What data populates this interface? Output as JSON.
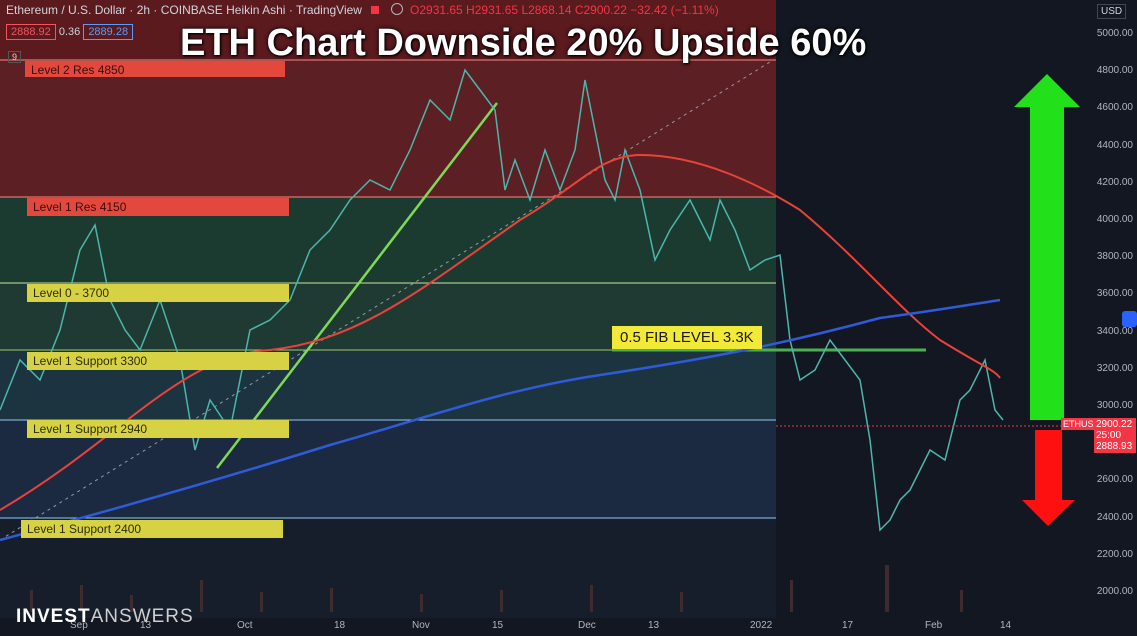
{
  "header": {
    "symbol": "Ethereum / U.S. Dollar",
    "interval": "2h",
    "exchange": "COINBASE",
    "chart_style": "Heikin Ashi",
    "platform": "TradingView",
    "ohlc": "O2931.65  H2931.65  L2868.14  C2900.22  −32.42 (−1.11%)",
    "sell_price": "2888.92",
    "spread": "0.36",
    "buy_price": "2889.28",
    "indicator_count": "9"
  },
  "overlay_title": "ETH Chart Downside 20% Upside 60%",
  "levels": [
    {
      "label": "Level 2 Res 4850",
      "kind": "res"
    },
    {
      "label": "Level 1 Res 4150",
      "kind": "res"
    },
    {
      "label": "Level 0 - 3700",
      "kind": "sup"
    },
    {
      "label": "Level 1 Support 3300",
      "kind": "sup"
    },
    {
      "label": "Level 1 Support 2940",
      "kind": "sup"
    },
    {
      "label": "Level 1 Support 2400",
      "kind": "sup"
    }
  ],
  "fib_label": "0.5 FIB LEVEL 3.3K",
  "currency": "USD",
  "y_axis_labels": [
    "5000.00",
    "4800.00",
    "4600.00",
    "4400.00",
    "4200.00",
    "4000.00",
    "3800.00",
    "3600.00",
    "3400.00",
    "3200.00",
    "3000.00",
    "2800.00",
    "2600.00",
    "2400.00",
    "2200.00",
    "2000.00"
  ],
  "x_axis_labels": [
    "Sep",
    "13",
    "Oct",
    "18",
    "Nov",
    "15",
    "Dec",
    "13",
    "2022",
    "17",
    "Feb",
    "14"
  ],
  "price_tag": {
    "symbol": "ETHUSD",
    "price": "2900.22",
    "countdown": "25:00",
    "bid": "2888.93"
  },
  "logo": {
    "part1": "INVEST",
    "part2": "ANSWERS"
  },
  "colors": {
    "up_arrow": "#22e01a",
    "down_arrow": "#ff1010",
    "ma_red": "#e8433a",
    "ma_blue": "#2f5bd8",
    "trend_green": "#7ed957"
  }
}
